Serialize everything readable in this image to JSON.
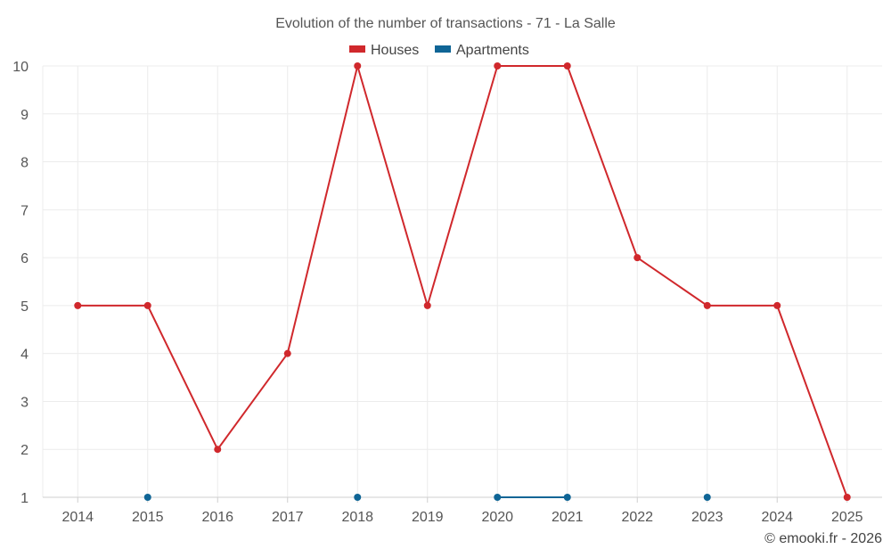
{
  "chart_data": {
    "type": "line",
    "title": "Evolution of the number of transactions - 71 - La Salle",
    "categories": [
      "2014",
      "2015",
      "2016",
      "2017",
      "2018",
      "2019",
      "2020",
      "2021",
      "2022",
      "2023",
      "2024",
      "2025"
    ],
    "ylim": [
      1,
      10
    ],
    "yticks": [
      "1",
      "2",
      "3",
      "4",
      "5",
      "6",
      "7",
      "8",
      "9",
      "10"
    ],
    "grid": true,
    "legend_position": "top-center",
    "series": [
      {
        "name": "Houses",
        "color": "#d0282c",
        "values": [
          5,
          5,
          2,
          4,
          10,
          5,
          10,
          10,
          6,
          5,
          5,
          1
        ]
      },
      {
        "name": "Apartments",
        "color": "#0f6596",
        "values": [
          null,
          1,
          null,
          null,
          1,
          null,
          1,
          1,
          null,
          1,
          null,
          null
        ]
      }
    ]
  },
  "credit": "© emooki.fr - 2026"
}
